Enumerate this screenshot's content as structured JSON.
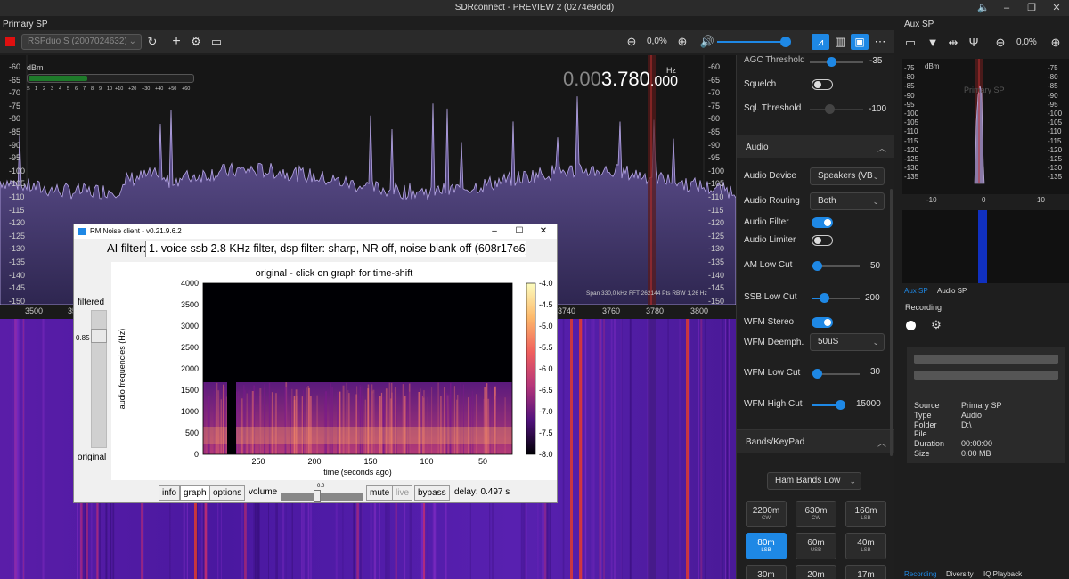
{
  "window": {
    "title": "SDRconnect - PREVIEW 2 (0274e9dcd)"
  },
  "primary": {
    "label": "Primary SP"
  },
  "aux": {
    "label": "Aux SP",
    "zoom": "0,0%"
  },
  "toolbar": {
    "device": "RSPduo S (2007024632)",
    "zoom": "0,0%",
    "volume_percent": 90
  },
  "spectrum": {
    "dbm_unit": "dBm",
    "db_ticks": [
      "-60",
      "-65",
      "-70",
      "-75",
      "-80",
      "-85",
      "-90",
      "-95",
      "-100",
      "-105",
      "-110",
      "-115",
      "-120",
      "-125",
      "-130",
      "-135",
      "-140",
      "-145",
      "-150"
    ],
    "smeter_scale": [
      "S",
      "1",
      "2",
      "3",
      "4",
      "5",
      "6",
      "7",
      "8",
      "9",
      "10",
      "+10",
      "+20",
      "+30",
      "+40",
      "+50",
      "+60"
    ],
    "freq_dim": "0.00",
    "freq_main": "3.780",
    "freq_small": ".000",
    "hz": "Hz",
    "span_info": "Span 330,0 kHz  FFT 262144 Pts  RBW 1,26 Hz",
    "freq_ticks": [
      "3500",
      "3520",
      "3740",
      "3760",
      "3780",
      "3800"
    ]
  },
  "settings": {
    "agc_threshold_val": "-35",
    "agc_threshold": "AGC Threshold",
    "squelch": "Squelch",
    "sql_threshold": "Sql. Threshold",
    "sql_threshold_val": "-100",
    "audio_section": "Audio",
    "audio_device": "Audio Device",
    "audio_device_val": "Speakers (VB",
    "audio_routing": "Audio Routing",
    "audio_routing_val": "Both",
    "audio_filter": "Audio Filter",
    "audio_limiter": "Audio Limiter",
    "am_low_cut": "AM Low Cut",
    "am_low_cut_val": "50",
    "ssb_low_cut": "SSB Low Cut",
    "ssb_low_cut_val": "200",
    "wfm_stereo": "WFM Stereo",
    "wfm_deemph": "WFM Deemph.",
    "wfm_deemph_val": "50uS",
    "wfm_low_cut": "WFM Low Cut",
    "wfm_low_cut_val": "30",
    "wfm_high_cut": "WFM High Cut",
    "wfm_high_cut_val": "15000",
    "bands_section": "Bands/KeyPad",
    "bands_select": "Ham Bands Low",
    "bands": [
      {
        "name": "2200m",
        "mode": "CW"
      },
      {
        "name": "630m",
        "mode": "CW"
      },
      {
        "name": "160m",
        "mode": "LSB"
      },
      {
        "name": "80m",
        "mode": "LSB"
      },
      {
        "name": "60m",
        "mode": "USB"
      },
      {
        "name": "40m",
        "mode": "LSB"
      },
      {
        "name": "30m",
        "mode": ""
      },
      {
        "name": "20m",
        "mode": ""
      },
      {
        "name": "17m",
        "mode": ""
      }
    ]
  },
  "auxspec": {
    "dbm_unit": "dBm",
    "db_ticks": [
      "-75",
      "-80",
      "-85",
      "-90",
      "-95",
      "-100",
      "-105",
      "-110",
      "-115",
      "-120",
      "-125",
      "-130",
      "-135"
    ],
    "overlay": "Primary SP",
    "x_ticks": [
      "-10",
      "0",
      "10"
    ],
    "tab1": "Aux SP",
    "tab2": "Audio SP"
  },
  "recording": {
    "label": "Recording",
    "info": [
      {
        "k": "Source",
        "v": "Primary SP"
      },
      {
        "k": "Type",
        "v": "Audio"
      },
      {
        "k": "Folder",
        "v": "D:\\"
      },
      {
        "k": "File",
        "v": ""
      },
      {
        "k": "Duration",
        "v": "00:00:00"
      },
      {
        "k": "Size",
        "v": "0,00 MB"
      }
    ],
    "tabs": [
      "Recording",
      "Diversity",
      "IQ Playback"
    ]
  },
  "rmnoise": {
    "title": "RM Noise client - v0.21.9.6.2",
    "ai_filter_label": "AI filter:",
    "ai_filter_value": "1. voice ssb 2.8 KHz filter, dsp filter: sharp, NR off, noise blank off (608r17e6)",
    "filtered": "filtered",
    "original": "original",
    "slider_value": "0.85",
    "plot_title": "original - click on graph for time-shift",
    "ylabel": "audio frequencies (Hz)",
    "xlabel": "time (seconds ago)",
    "y_ticks": [
      "4000",
      "3500",
      "3000",
      "2500",
      "2000",
      "1500",
      "1000",
      "500",
      "0"
    ],
    "x_ticks": [
      "250",
      "200",
      "150",
      "100",
      "50"
    ],
    "cbar_ticks": [
      "-4.0",
      "-4.5",
      "-5.0",
      "-5.5",
      "-6.0",
      "-6.5",
      "-7.0",
      "-7.5",
      "-8.0"
    ],
    "buttons": {
      "info": "info",
      "graph": "graph",
      "options": "options",
      "mute": "mute",
      "live": "live",
      "bypass": "bypass"
    },
    "volume_label": "volume",
    "volume_value": "0.0",
    "delay": "delay: 0.497 s"
  }
}
